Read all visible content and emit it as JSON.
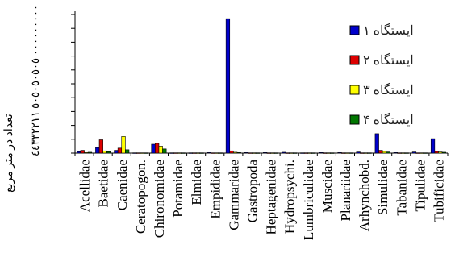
{
  "chart_data": {
    "type": "bar",
    "title": "",
    "xlabel": "",
    "ylabel": "تعداد در متر مربع",
    "y_tick_text": "٠٠٠٠٠٠٠٠٠ ٥٠٥٠٥٠٥٠٥ ٤٤٣٣٢٢١١",
    "ylim": [
      0,
      500
    ],
    "grid": false,
    "legend_position": "right",
    "categories": [
      "Acellidae",
      "Baetidae",
      "Caenidae",
      "Ceratopogon.",
      "Chironomidae",
      "Potamidae",
      "Elmidae",
      "Empididae",
      "Gammaridae",
      "Gastropoda",
      "Heptagenidae",
      "Hydropsychi.",
      "Lumbriculidae",
      "Muscidae",
      "Planariidae",
      "Arhynchobd.",
      "Simulidae",
      "Tabanidae",
      "Tipulidae",
      "Tubificidae"
    ],
    "series": [
      {
        "name": "ایستگاه ۱",
        "color": "#0000cc",
        "values": [
          5,
          20,
          10,
          1,
          32,
          1,
          1,
          2,
          485,
          2,
          2,
          3,
          1,
          2,
          2,
          4,
          70,
          2,
          4,
          52
        ]
      },
      {
        "name": "ایستگاه ۲",
        "color": "#dd0000",
        "values": [
          10,
          48,
          18,
          1,
          35,
          1,
          1,
          1,
          8,
          1,
          1,
          1,
          1,
          1,
          1,
          1,
          10,
          1,
          1,
          6
        ]
      },
      {
        "name": "ایستگاه ۳",
        "color": "#ffff00",
        "values": [
          2,
          8,
          60,
          1,
          25,
          1,
          1,
          1,
          3,
          1,
          1,
          1,
          1,
          1,
          1,
          1,
          6,
          1,
          1,
          4
        ]
      },
      {
        "name": "ایستگاه ۴",
        "color": "#007700",
        "values": [
          3,
          5,
          12,
          1,
          15,
          1,
          1,
          1,
          2,
          1,
          1,
          1,
          1,
          1,
          1,
          1,
          4,
          1,
          1,
          3
        ]
      }
    ]
  }
}
